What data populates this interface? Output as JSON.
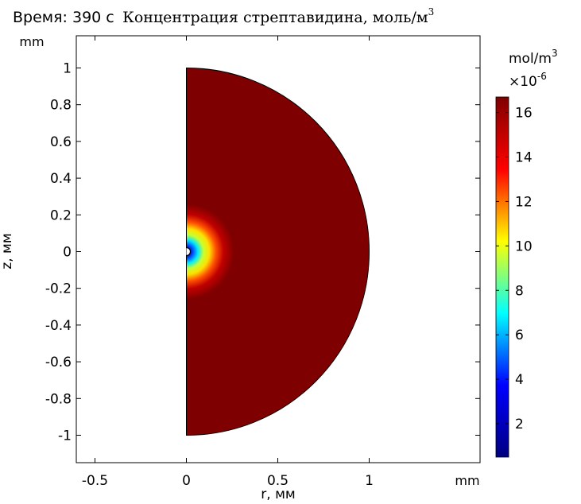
{
  "header": {
    "time_label": "Время: 390 с",
    "title": "Концентрация стрептавидина, моль/м",
    "title_superscript": "3"
  },
  "chart_data": {
    "type": "heatmap",
    "description_unit_note": "2D axisymmetric surface plot",
    "x_unit_label": "mm",
    "y_unit_label": "mm",
    "xlabel": "r, мм",
    "ylabel": "z, мм",
    "xlim": [
      -0.6,
      1.6
    ],
    "ylim": [
      -1.15,
      1.15
    ],
    "x_ticks": [
      {
        "value": -0.5,
        "label": "-0.5"
      },
      {
        "value": 0,
        "label": "0"
      },
      {
        "value": 0.5,
        "label": "0.5"
      },
      {
        "value": 1,
        "label": "1"
      }
    ],
    "y_ticks": [
      {
        "value": 1,
        "label": "1"
      },
      {
        "value": 0.8,
        "label": "0.8"
      },
      {
        "value": 0.6,
        "label": "0.6"
      },
      {
        "value": 0.4,
        "label": "0.4"
      },
      {
        "value": 0.2,
        "label": "0.2"
      },
      {
        "value": 0,
        "label": "0"
      },
      {
        "value": -0.2,
        "label": "-0.2"
      },
      {
        "value": -0.4,
        "label": "-0.4"
      },
      {
        "value": -0.6,
        "label": "-0.6"
      },
      {
        "value": -0.8,
        "label": "-0.8"
      },
      {
        "value": -1,
        "label": "-1"
      }
    ],
    "domain": {
      "shape": "half-disk",
      "r_max": 1,
      "z_min": -1,
      "z_max": 1
    },
    "field": {
      "background_value": 16.7,
      "min_value": 0.5,
      "depletion_center": [
        0,
        0
      ],
      "depletion_radius": 0.015
    },
    "colorbar": {
      "unit": "mol/m",
      "unit_superscript": "3",
      "multiplier": "×10",
      "multiplier_exponent": "-6",
      "range": [
        0.5,
        16.7
      ],
      "colormap": "rainbow",
      "colors": [
        "#00007f",
        "#0000ff",
        "#00ffff",
        "#ffff00",
        "#ff0000",
        "#7f0000"
      ],
      "ticks": [
        {
          "value": 2,
          "label": "2"
        },
        {
          "value": 4,
          "label": "4"
        },
        {
          "value": 6,
          "label": "6"
        },
        {
          "value": 8,
          "label": "8"
        },
        {
          "value": 10,
          "label": "10"
        },
        {
          "value": 12,
          "label": "12"
        },
        {
          "value": 14,
          "label": "14"
        },
        {
          "value": 16,
          "label": "16"
        }
      ]
    }
  }
}
